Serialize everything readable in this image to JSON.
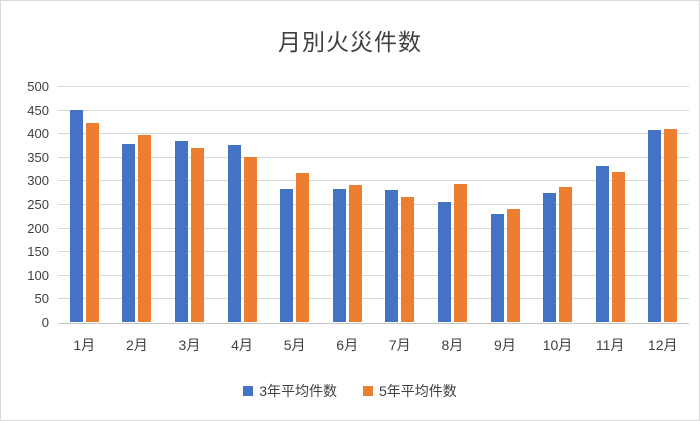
{
  "chart_data": {
    "type": "bar",
    "title": "月別火災件数",
    "categories": [
      "1月",
      "2月",
      "3月",
      "4月",
      "5月",
      "6月",
      "7月",
      "8月",
      "9月",
      "10月",
      "11月",
      "12月"
    ],
    "series": [
      {
        "name": "3年平均件数",
        "color": "#4472C4",
        "values": [
          450,
          377,
          383,
          375,
          281,
          281,
          279,
          255,
          228,
          273,
          330,
          407
        ]
      },
      {
        "name": "5年平均件数",
        "color": "#ED7D31",
        "values": [
          422,
          397,
          368,
          350,
          315,
          290,
          265,
          293,
          240,
          287,
          317,
          409
        ]
      }
    ],
    "xlabel": "",
    "ylabel": "",
    "ylim": [
      0,
      500
    ],
    "y_ticks": [
      0,
      50,
      100,
      150,
      200,
      250,
      300,
      350,
      400,
      450,
      500
    ],
    "grid": true,
    "legend_position": "bottom",
    "gridline_color": "#d9d9d9",
    "text_color": "#404040"
  }
}
